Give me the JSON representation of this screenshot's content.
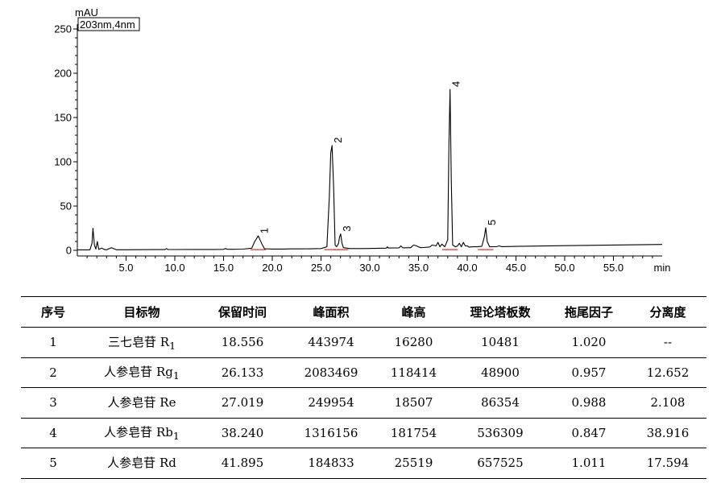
{
  "chart_data": {
    "type": "line",
    "title": "",
    "xlabel": "min",
    "ylabel": "mAU",
    "legend": "203nm,4nm",
    "xlim": [
      0,
      60
    ],
    "ylim": [
      0,
      250
    ],
    "x_ticks": [
      "5.0",
      "10.0",
      "15.0",
      "20.0",
      "25.0",
      "30.0",
      "35.0",
      "40.0",
      "45.0",
      "50.0",
      "55.0",
      "min"
    ],
    "y_ticks": [
      "0",
      "50",
      "100",
      "150",
      "200",
      "250"
    ],
    "peaks": [
      {
        "label": "1",
        "x": 18.556,
        "y": 16.3
      },
      {
        "label": "2",
        "x": 26.133,
        "y": 118.4
      },
      {
        "label": "3",
        "x": 27.019,
        "y": 18.5
      },
      {
        "label": "4",
        "x": 38.24,
        "y": 181.8
      },
      {
        "label": "5",
        "x": 41.895,
        "y": 25.5
      }
    ],
    "series": [
      {
        "x": [
          0.0,
          1.3,
          1.5,
          1.6,
          1.75,
          1.9,
          2.05,
          2.2,
          2.5,
          2.8,
          3.0,
          3.5,
          4.0,
          5.0,
          6.0,
          8.0,
          9.0,
          9.15,
          9.3,
          10.0,
          12.0,
          14.0,
          15.0,
          15.2,
          15.4,
          16.0,
          17.0,
          17.9,
          18.2,
          18.56,
          18.9,
          19.2,
          20.0,
          21.0,
          22.0,
          23.0,
          24.0,
          25.0,
          25.6,
          25.85,
          26.0,
          26.13,
          26.3,
          26.45,
          26.6,
          26.8,
          26.9,
          27.02,
          27.15,
          27.3,
          28.0,
          29.0,
          30.0,
          31.0,
          31.7,
          31.8,
          31.9,
          33.0,
          33.2,
          33.4,
          34.2,
          34.5,
          34.8,
          35.2,
          35.5,
          36.0,
          36.2,
          36.4,
          36.8,
          37.0,
          37.2,
          37.4,
          37.7,
          38.0,
          38.12,
          38.24,
          38.36,
          38.5,
          38.8,
          39.0,
          39.2,
          39.4,
          39.6,
          39.8,
          40.0,
          40.2,
          40.5,
          41.0,
          41.5,
          41.75,
          41.9,
          42.05,
          42.3,
          43.0,
          43.3,
          43.5,
          44.0,
          45.0,
          50.0,
          55.0,
          60.0
        ],
        "y": [
          0.5,
          0.5,
          8,
          25,
          6,
          1.5,
          10,
          1,
          2.5,
          0.8,
          0.6,
          3,
          0.6,
          0.6,
          0.7,
          0.8,
          0.8,
          2,
          0.9,
          0.9,
          1.0,
          1.0,
          1.1,
          2,
          1.2,
          1.2,
          1.4,
          2.5,
          10,
          16.3,
          8,
          1.8,
          1.5,
          1.5,
          1.6,
          1.6,
          1.7,
          2.0,
          4,
          60,
          110,
          118.4,
          70,
          6,
          4,
          8,
          15,
          18.5,
          8,
          3,
          2.0,
          2.0,
          2.1,
          2.4,
          2.5,
          4,
          2.6,
          2.7,
          5,
          2.8,
          3,
          6,
          5,
          3,
          3.2,
          3.5,
          4,
          6,
          5,
          9,
          4,
          7,
          4,
          12,
          120,
          181.8,
          80,
          6,
          4,
          5,
          8,
          4,
          9,
          5,
          5,
          3.5,
          4,
          4,
          4.5,
          15,
          25.5,
          10,
          4,
          4.2,
          5,
          4.2,
          4.3,
          4.5,
          5.3,
          6.0,
          6.6
        ]
      }
    ]
  },
  "table": {
    "headers": [
      "序号",
      "目标物",
      "保留时间",
      "峰面积",
      "峰高",
      "理论塔板数",
      "拖尾因子",
      "分离度"
    ],
    "rows": [
      {
        "no": "1",
        "name": "三七皂苷 ",
        "name_latin": "R",
        "name_sub": "1",
        "rt": "18.556",
        "area": "443974",
        "height": "16280",
        "plates": "10481",
        "tailing": "1.020",
        "resolution": "--"
      },
      {
        "no": "2",
        "name": "人参皂苷 ",
        "name_latin": "Rg",
        "name_sub": "1",
        "rt": "26.133",
        "area": "2083469",
        "height": "118414",
        "plates": "48900",
        "tailing": "0.957",
        "resolution": "12.652"
      },
      {
        "no": "3",
        "name": "人参皂苷 ",
        "name_latin": "Re",
        "name_sub": "",
        "rt": "27.019",
        "area": "249954",
        "height": "18507",
        "plates": "86354",
        "tailing": "0.988",
        "resolution": "2.108"
      },
      {
        "no": "4",
        "name": "人参皂苷 ",
        "name_latin": "Rb",
        "name_sub": "1",
        "rt": "38.240",
        "area": "1316156",
        "height": "181754",
        "plates": "536309",
        "tailing": "0.847",
        "resolution": "38.916"
      },
      {
        "no": "5",
        "name": "人参皂苷 ",
        "name_latin": "Rd",
        "name_sub": "",
        "rt": "41.895",
        "area": "184833",
        "height": "25519",
        "plates": "657525",
        "tailing": "1.011",
        "resolution": "17.594"
      }
    ]
  }
}
